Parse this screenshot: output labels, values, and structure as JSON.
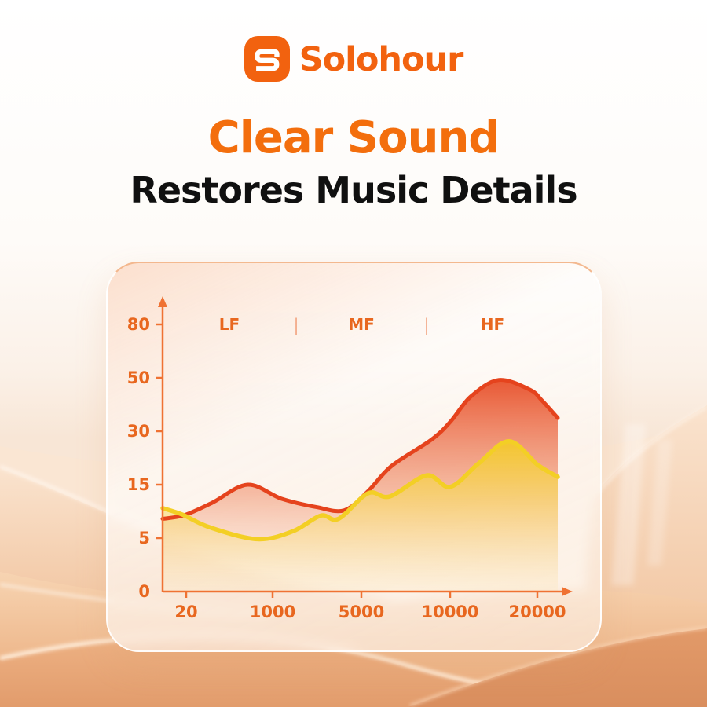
{
  "brand": {
    "name": "Solohour",
    "logo_color": "#F2620F"
  },
  "heading": {
    "title": "Clear Sound",
    "subtitle": "Restores Music Details",
    "title_color": "#F36E0D",
    "subtitle_color": "#101010"
  },
  "chart_data": {
    "type": "area",
    "title": "",
    "xlabel": "",
    "ylabel": "",
    "grid": false,
    "legend": "none",
    "bands": [
      "LF",
      "MF",
      "HF"
    ],
    "band_separator": "|",
    "band_label_color": "#E8671F",
    "band_separator_color": "#F3A988",
    "axis_color": "#EF7233",
    "tick_label_color": "#E8671F",
    "x_ticks": [
      "20",
      "1000",
      "5000",
      "10000",
      "20000"
    ],
    "y_ticks": [
      80,
      50,
      30,
      15,
      5,
      0
    ],
    "y_scale_stops": [
      0,
      5,
      15,
      30,
      50,
      80
    ],
    "series": [
      {
        "name": "red-response-curve",
        "color": "#E5431D",
        "fill_top": "rgba(229,64,24,0.92)",
        "fill_mid": "rgba(238,130,90,0.50)",
        "fill_bottom": "rgba(246,200,175,0.06)",
        "points": [
          {
            "t": 0.0,
            "v": 8.6
          },
          {
            "t": 0.055,
            "v": 9.3
          },
          {
            "t": 0.125,
            "v": 11.6
          },
          {
            "t": 0.215,
            "v": 15.0
          },
          {
            "t": 0.3,
            "v": 12.4
          },
          {
            "t": 0.39,
            "v": 10.8
          },
          {
            "t": 0.46,
            "v": 10.2
          },
          {
            "t": 0.52,
            "v": 13.8
          },
          {
            "t": 0.58,
            "v": 20.3
          },
          {
            "t": 0.68,
            "v": 27.6
          },
          {
            "t": 0.728,
            "v": 33.5
          },
          {
            "t": 0.78,
            "v": 43.0
          },
          {
            "t": 0.851,
            "v": 49.2
          },
          {
            "t": 0.93,
            "v": 45.5
          },
          {
            "t": 0.96,
            "v": 41.5
          },
          {
            "t": 1.0,
            "v": 35.0
          }
        ]
      },
      {
        "name": "yellow-response-curve",
        "color": "#F3CF25",
        "fill_top": "rgba(244,201,38,0.95)",
        "fill_mid": "rgba(248,220,120,0.55)",
        "fill_bottom": "rgba(252,238,190,0.22)",
        "points": [
          {
            "t": 0.0,
            "v": 10.6
          },
          {
            "t": 0.05,
            "v": 9.4
          },
          {
            "t": 0.12,
            "v": 7.0
          },
          {
            "t": 0.24,
            "v": 4.9
          },
          {
            "t": 0.33,
            "v": 6.3
          },
          {
            "t": 0.4,
            "v": 9.2
          },
          {
            "t": 0.445,
            "v": 8.6
          },
          {
            "t": 0.52,
            "v": 13.4
          },
          {
            "t": 0.575,
            "v": 12.8
          },
          {
            "t": 0.668,
            "v": 17.6
          },
          {
            "t": 0.728,
            "v": 14.6
          },
          {
            "t": 0.8,
            "v": 21.0
          },
          {
            "t": 0.877,
            "v": 27.2
          },
          {
            "t": 0.95,
            "v": 20.5
          },
          {
            "t": 1.0,
            "v": 17.2
          }
        ]
      }
    ]
  }
}
